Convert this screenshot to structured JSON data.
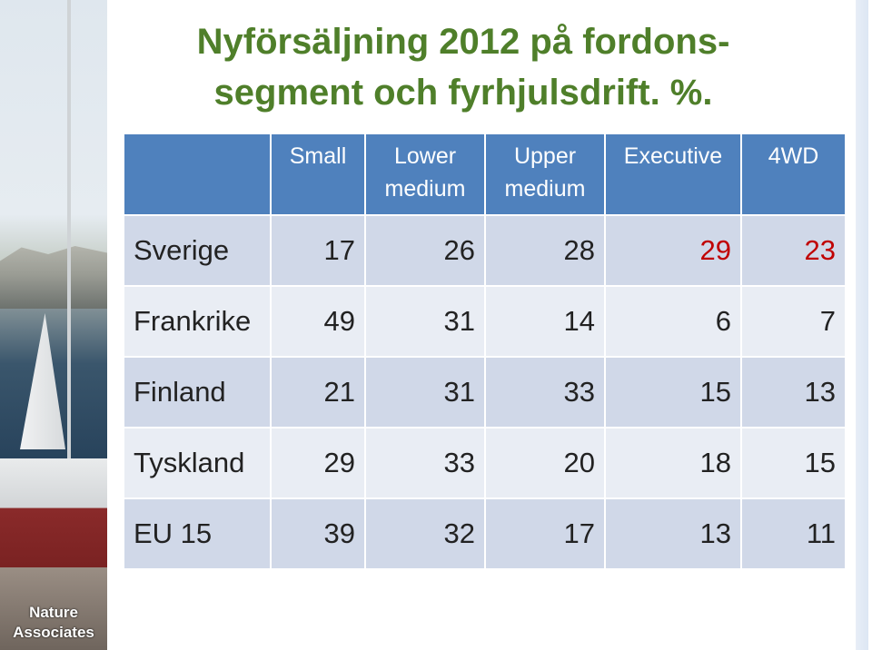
{
  "title": {
    "line1": "Nyförsäljning 2012 på fordons-",
    "line2": "segment och fyrhjulsdrift. %."
  },
  "logo": {
    "line1": "Nature",
    "line2": "Associates"
  },
  "table": {
    "headers": [
      "",
      "Small",
      "Lower medium",
      "Upper medium",
      "Executive",
      "4WD"
    ],
    "rows": [
      {
        "label": "Sverige",
        "values": [
          "17",
          "26",
          "28",
          "29",
          "23"
        ]
      },
      {
        "label": "Frankrike",
        "values": [
          "49",
          "31",
          "14",
          "6",
          "7"
        ]
      },
      {
        "label": "Finland",
        "values": [
          "21",
          "31",
          "33",
          "15",
          "13"
        ]
      },
      {
        "label": "Tyskland",
        "values": [
          "29",
          "33",
          "20",
          "18",
          "15"
        ]
      },
      {
        "label": "EU 15",
        "values": [
          "39",
          "32",
          "17",
          "13",
          "11"
        ]
      }
    ],
    "highlight_color": "#c00000",
    "header_color": "#4f81bd"
  }
}
